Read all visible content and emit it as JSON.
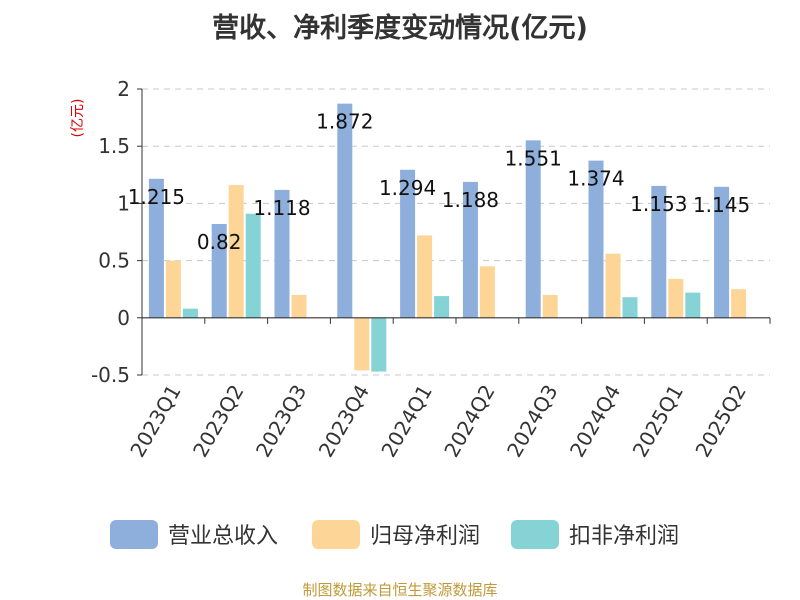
{
  "chart_data": {
    "type": "bar",
    "title": "营收、净利季度变动情况(亿元)",
    "ylabel": "(亿元)",
    "xlabel": "",
    "categories": [
      "2023Q1",
      "2023Q2",
      "2023Q3",
      "2023Q4",
      "2024Q1",
      "2024Q2",
      "2024Q3",
      "2024Q4",
      "2025Q1",
      "2025Q2"
    ],
    "series": [
      {
        "name": "营业总收入",
        "color": "#8eaedc",
        "values": [
          1.215,
          0.82,
          1.118,
          1.872,
          1.294,
          1.188,
          1.551,
          1.374,
          1.153,
          1.145
        ],
        "labels": [
          "1.215",
          "0.82",
          "1.118",
          "1.872",
          "1.294",
          "1.188",
          "1.551",
          "1.374",
          "1.153",
          "1.145"
        ]
      },
      {
        "name": "归母净利润",
        "color": "#fdd597",
        "values": [
          0.5,
          1.16,
          0.2,
          -0.46,
          0.72,
          0.45,
          0.2,
          0.56,
          0.34,
          0.25
        ]
      },
      {
        "name": "扣非净利润",
        "color": "#86d3d5",
        "values": [
          0.08,
          0.91,
          0.0,
          -0.47,
          0.19,
          0.0,
          0.0,
          0.18,
          0.22,
          0.0
        ]
      }
    ],
    "ylim": [
      -0.5,
      2
    ],
    "yticks": [
      -0.5,
      0,
      0.5,
      1,
      1.5,
      2
    ],
    "ytick_labels": [
      "-0.5",
      "0",
      "0.5",
      "1",
      "1.5",
      "2"
    ],
    "grid": true,
    "legend_position": "bottom"
  },
  "footer": {
    "source": "制图数据来自恒生聚源数据库"
  }
}
